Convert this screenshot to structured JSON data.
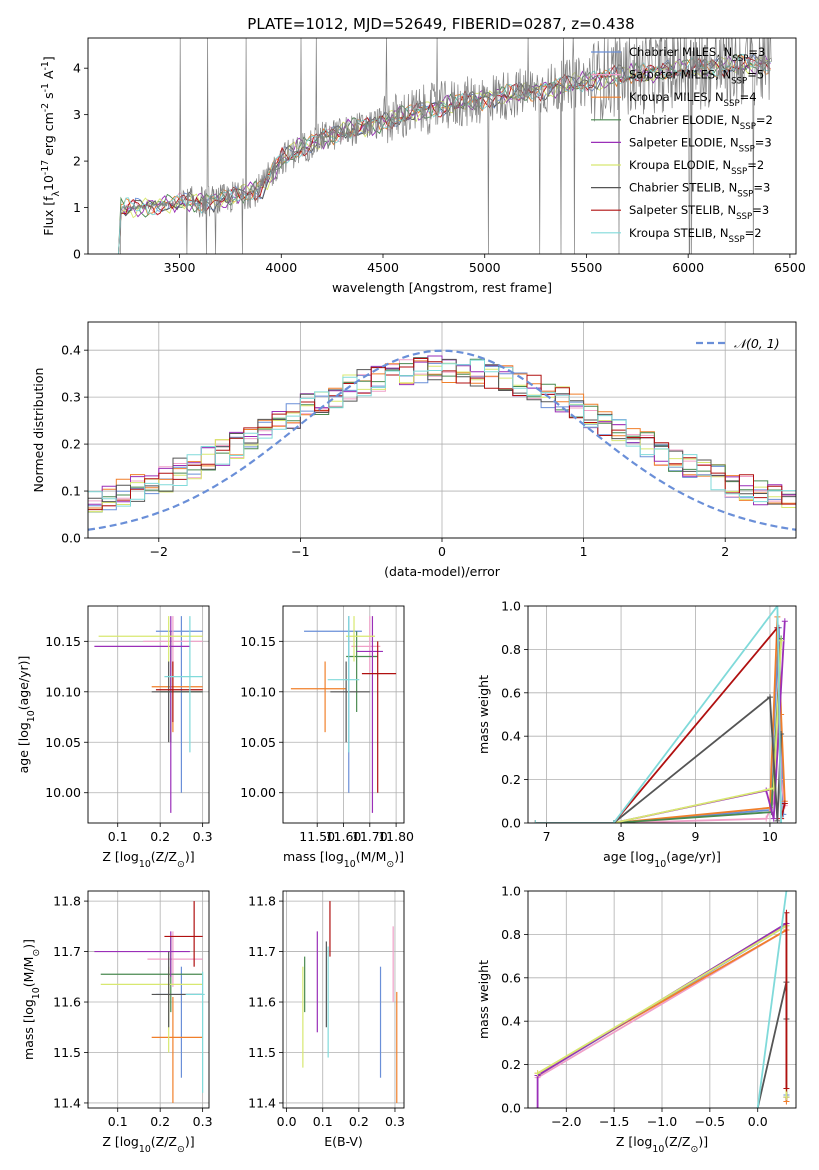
{
  "title": "PLATE=1012, MJD=52649, FIBERID=0287, z=0.438",
  "models": [
    {
      "name": "Chabrier MILES",
      "nssp": "3",
      "color": "#6a8fd8"
    },
    {
      "name": "Salpeter MILES",
      "nssp": "5",
      "color": "#f0a0c8"
    },
    {
      "name": "Kroupa MILES",
      "nssp": "4",
      "color": "#f07f2a"
    },
    {
      "name": "Chabrier ELODIE",
      "nssp": "2",
      "color": "#4a8a50"
    },
    {
      "name": "Salpeter ELODIE",
      "nssp": "3",
      "color": "#9a2fb8"
    },
    {
      "name": "Kroupa ELODIE",
      "nssp": "2",
      "color": "#d8e870"
    },
    {
      "name": "Chabrier STELIB",
      "nssp": "3",
      "color": "#555555"
    },
    {
      "name": "Salpeter STELIB",
      "nssp": "3",
      "color": "#b01010"
    },
    {
      "name": "Kroupa STELIB",
      "nssp": "2",
      "color": "#80dada"
    }
  ],
  "chart_data": [
    {
      "id": "spectrum",
      "type": "line",
      "xlabel": "wavelength [Angstrom, rest frame]",
      "ylabel": "Flux [f_λ 10^-17 erg cm^-2 s^-1 A^-1]",
      "xlim": [
        3050,
        6530
      ],
      "ylim": [
        0,
        4.65
      ],
      "xticks": [
        3500,
        4000,
        4500,
        5000,
        5500,
        6000,
        6500
      ],
      "yticks": [
        0,
        1,
        2,
        3,
        4
      ],
      "grid": false,
      "legend": "top-right",
      "data_color": "#808080",
      "continuum": {
        "x": [
          3200,
          3500,
          3700,
          3900,
          4000,
          4200,
          4500,
          4700,
          5000,
          5300,
          5600,
          5900,
          6200,
          6400
        ],
        "y": [
          0.95,
          1.1,
          1.15,
          1.4,
          2.05,
          2.5,
          2.85,
          3.1,
          3.35,
          3.55,
          3.8,
          3.95,
          4.05,
          4.1
        ]
      },
      "data_range": [
        3200,
        6410
      ]
    },
    {
      "id": "residuals",
      "type": "histogram",
      "xlabel": "(data-model)/error",
      "ylabel": "Normed distribution",
      "xlim": [
        -2.5,
        2.5
      ],
      "ylim": [
        0,
        0.46
      ],
      "xticks": [
        -2,
        -1,
        0,
        1,
        2
      ],
      "yticks": [
        0.0,
        0.1,
        0.2,
        0.3,
        0.4
      ],
      "grid": true,
      "legend": "top-right",
      "reference": {
        "name": "N(0,1)",
        "color": "#6a8fd8"
      },
      "bin_width": 0.1
    },
    {
      "id": "age-vs-Z",
      "type": "errorbar",
      "xlabel": "Z [log10(Z/Z⊙)]",
      "ylabel": "age [log10(age/yr)]",
      "xlim": [
        0.03,
        0.315
      ],
      "ylim": [
        9.97,
        10.185
      ],
      "xticks": [
        0.1,
        0.2,
        0.3
      ],
      "yticks": [
        10.0,
        10.05,
        10.1,
        10.15
      ],
      "grid": true,
      "points": [
        {
          "model": 0,
          "x": 0.25,
          "xerr": [
            0.19,
            0.3
          ],
          "y": 10.16,
          "yerr": [
            10.0,
            10.175
          ]
        },
        {
          "model": 1,
          "x": 0.23,
          "xerr": [
            0.16,
            0.3
          ],
          "y": 10.15,
          "yerr": [
            10.12,
            10.175
          ]
        },
        {
          "model": 2,
          "x": 0.23,
          "xerr": [
            0.18,
            0.3
          ],
          "y": 10.105,
          "yerr": [
            10.06,
            10.13
          ]
        },
        {
          "model": 3,
          "x": 0.225,
          "xerr": [
            0.2,
            0.3
          ],
          "y": 10.1,
          "yerr": [
            10.05,
            10.16
          ]
        },
        {
          "model": 4,
          "x": 0.225,
          "xerr": [
            0.045,
            0.27
          ],
          "y": 10.145,
          "yerr": [
            9.98,
            10.175
          ]
        },
        {
          "model": 5,
          "x": 0.22,
          "xerr": [
            0.055,
            0.3
          ],
          "y": 10.155,
          "yerr": [
            10.13,
            10.175
          ]
        },
        {
          "model": 6,
          "x": 0.22,
          "xerr": [
            0.18,
            0.3
          ],
          "y": 10.1,
          "yerr": [
            10.05,
            10.13
          ]
        },
        {
          "model": 7,
          "x": 0.23,
          "xerr": [
            0.19,
            0.3
          ],
          "y": 10.102,
          "yerr": [
            10.07,
            10.13
          ]
        },
        {
          "model": 8,
          "x": 0.27,
          "xerr": [
            0.21,
            0.3
          ],
          "y": 10.115,
          "yerr": [
            10.04,
            10.175
          ]
        }
      ]
    },
    {
      "id": "age-vs-mass",
      "type": "errorbar",
      "xlabel": "mass [log10(M/M⊙)]",
      "ylabel": "",
      "xlim": [
        11.37,
        11.83
      ],
      "ylim": [
        9.97,
        10.185
      ],
      "xticks": [
        11.5,
        11.6,
        11.7,
        11.8
      ],
      "yticks": [
        10.0,
        10.05,
        10.1,
        10.15
      ],
      "grid": true,
      "points": [
        {
          "model": 0,
          "x": 11.62,
          "xerr": [
            11.45,
            11.67
          ],
          "y": 10.16,
          "yerr": [
            10.0,
            10.175
          ]
        },
        {
          "model": 1,
          "x": 11.7,
          "xerr": [
            11.63,
            11.74
          ],
          "y": 10.145,
          "yerr": [
            10.12,
            10.175
          ]
        },
        {
          "model": 2,
          "x": 11.53,
          "xerr": [
            11.4,
            11.61
          ],
          "y": 10.103,
          "yerr": [
            10.06,
            10.13
          ]
        },
        {
          "model": 3,
          "x": 11.65,
          "xerr": [
            11.61,
            11.73
          ],
          "y": 10.135,
          "yerr": [
            10.08,
            10.16
          ]
        },
        {
          "model": 4,
          "x": 11.71,
          "xerr": [
            11.65,
            11.75
          ],
          "y": 10.14,
          "yerr": [
            9.98,
            10.175
          ]
        },
        {
          "model": 5,
          "x": 11.64,
          "xerr": [
            11.61,
            11.72
          ],
          "y": 10.155,
          "yerr": [
            10.13,
            10.175
          ]
        },
        {
          "model": 6,
          "x": 11.61,
          "xerr": [
            11.55,
            11.7
          ],
          "y": 10.1,
          "yerr": [
            10.05,
            10.13
          ]
        },
        {
          "model": 7,
          "x": 11.73,
          "xerr": [
            11.67,
            11.8
          ],
          "y": 10.118,
          "yerr": [
            10.0,
            10.15
          ]
        },
        {
          "model": 8,
          "x": 11.62,
          "xerr": [
            11.54,
            11.66
          ],
          "y": 10.112,
          "yerr": [
            10.04,
            10.175
          ]
        }
      ]
    },
    {
      "id": "weight-vs-age",
      "type": "line",
      "xlabel": "age [log10(age/yr)]",
      "ylabel": "mass weight",
      "xlim": [
        6.75,
        10.35
      ],
      "ylim": [
        0,
        1.0
      ],
      "xticks": [
        7,
        8,
        9,
        10
      ],
      "yticks": [
        0.0,
        0.2,
        0.4,
        0.6,
        0.8,
        1.0
      ],
      "grid": true,
      "series": [
        {
          "model": 0,
          "x": [
            6.85,
            7.9,
            10.0,
            10.12,
            10.18
          ],
          "y": [
            0,
            0,
            0.06,
            0.9,
            0.04
          ]
        },
        {
          "model": 1,
          "x": [
            6.85,
            7.9,
            9.95,
            10.05,
            10.12,
            10.15,
            10.2
          ],
          "y": [
            0,
            0,
            0.02,
            0.1,
            0.6,
            0.2,
            0.08
          ]
        },
        {
          "model": 2,
          "x": [
            6.85,
            7.9,
            10.0,
            10.1,
            10.15,
            10.2
          ],
          "y": [
            0,
            0,
            0.07,
            0.95,
            0.5,
            0.1
          ]
        },
        {
          "model": 3,
          "x": [
            6.85,
            7.9,
            10.02,
            10.15
          ],
          "y": [
            0,
            0,
            0.05,
            0.85
          ]
        },
        {
          "model": 4,
          "x": [
            6.85,
            7.9,
            9.95,
            10.05,
            10.2
          ],
          "y": [
            0,
            0,
            0.15,
            0.02,
            0.93
          ]
        },
        {
          "model": 5,
          "x": [
            6.85,
            7.9,
            10.05,
            10.15
          ],
          "y": [
            0,
            0,
            0.16,
            0.84
          ]
        },
        {
          "model": 6,
          "x": [
            6.85,
            7.9,
            10.0,
            10.1,
            10.15
          ],
          "y": [
            0,
            0,
            0.58,
            0.01,
            0.41
          ]
        },
        {
          "model": 7,
          "x": [
            6.85,
            7.9,
            10.1,
            10.15,
            10.2
          ],
          "y": [
            0,
            0,
            0.9,
            0.02,
            0.09
          ]
        },
        {
          "model": 8,
          "x": [
            6.85,
            7.9,
            10.1,
            10.15
          ],
          "y": [
            0,
            0,
            1.0,
            0.0
          ]
        }
      ]
    },
    {
      "id": "mass-vs-Z",
      "type": "errorbar",
      "xlabel": "Z [log10(Z/Z⊙)]",
      "ylabel": "mass [log10(M/M⊙)]",
      "xlim": [
        0.03,
        0.315
      ],
      "ylim": [
        11.39,
        11.82
      ],
      "xticks": [
        0.1,
        0.2,
        0.3
      ],
      "yticks": [
        11.4,
        11.5,
        11.6,
        11.7,
        11.8
      ],
      "grid": true,
      "points": [
        {
          "model": 0,
          "x": 0.25,
          "xerr": [
            0.19,
            0.3
          ],
          "y": 11.615,
          "yerr": [
            11.45,
            11.67
          ]
        },
        {
          "model": 1,
          "x": 0.23,
          "xerr": [
            0.17,
            0.3
          ],
          "y": 11.685,
          "yerr": [
            11.63,
            11.74
          ]
        },
        {
          "model": 2,
          "x": 0.23,
          "xerr": [
            0.18,
            0.3
          ],
          "y": 11.53,
          "yerr": [
            11.4,
            11.61
          ]
        },
        {
          "model": 3,
          "x": 0.225,
          "xerr": [
            0.06,
            0.3
          ],
          "y": 11.655,
          "yerr": [
            11.58,
            11.73
          ]
        },
        {
          "model": 4,
          "x": 0.225,
          "xerr": [
            0.045,
            0.27
          ],
          "y": 11.7,
          "yerr": [
            11.65,
            11.74
          ]
        },
        {
          "model": 5,
          "x": 0.22,
          "xerr": [
            0.06,
            0.3
          ],
          "y": 11.635,
          "yerr": [
            11.5,
            11.67
          ]
        },
        {
          "model": 6,
          "x": 0.22,
          "xerr": [
            0.18,
            0.3
          ],
          "y": 11.615,
          "yerr": [
            11.55,
            11.7
          ]
        },
        {
          "model": 7,
          "x": 0.28,
          "xerr": [
            0.21,
            0.3
          ],
          "y": 11.73,
          "yerr": [
            11.67,
            11.8
          ]
        },
        {
          "model": 8,
          "x": 0.3,
          "xerr": [
            0.26,
            0.305
          ],
          "y": 11.615,
          "yerr": [
            11.42,
            11.66
          ]
        }
      ]
    },
    {
      "id": "mass-vs-ebv",
      "type": "errorbar",
      "xlabel": "E(B-V)",
      "ylabel": "",
      "xlim": [
        -0.01,
        0.325
      ],
      "ylim": [
        11.39,
        11.82
      ],
      "xticks": [
        0.0,
        0.1,
        0.2,
        0.3
      ],
      "yticks": [
        11.4,
        11.5,
        11.6,
        11.7,
        11.8
      ],
      "grid": true,
      "points": [
        {
          "model": 0,
          "x": 0.26,
          "yerr": [
            11.45,
            11.67
          ]
        },
        {
          "model": 1,
          "x": 0.295,
          "yerr": [
            11.6,
            11.75
          ]
        },
        {
          "model": 2,
          "x": 0.305,
          "yerr": [
            11.4,
            11.62
          ]
        },
        {
          "model": 3,
          "x": 0.05,
          "yerr": [
            11.58,
            11.69
          ]
        },
        {
          "model": 4,
          "x": 0.085,
          "yerr": [
            11.54,
            11.74
          ]
        },
        {
          "model": 5,
          "x": 0.045,
          "yerr": [
            11.47,
            11.67
          ]
        },
        {
          "model": 6,
          "x": 0.11,
          "yerr": [
            11.55,
            11.72
          ]
        },
        {
          "model": 7,
          "x": 0.12,
          "yerr": [
            11.69,
            11.8
          ]
        },
        {
          "model": 8,
          "x": 0.115,
          "yerr": [
            11.49,
            11.71
          ]
        }
      ]
    },
    {
      "id": "weight-vs-Z",
      "type": "line",
      "xlabel": "Z [log10(Z/Z⊙)]",
      "ylabel": "mass weight",
      "xlim": [
        -2.4,
        0.4
      ],
      "ylim": [
        0,
        1.0
      ],
      "xticks": [
        -2.0,
        -1.5,
        -1.0,
        -0.5,
        0.0
      ],
      "yticks": [
        0.0,
        0.2,
        0.4,
        0.6,
        0.8,
        1.0
      ],
      "grid": true,
      "series": [
        {
          "model": 0,
          "x": [
            -2.3,
            0.3,
            0.3
          ],
          "y": [
            0.15,
            0.84,
            0.06
          ]
        },
        {
          "model": 1,
          "x": [
            -2.3,
            0.3,
            0.3
          ],
          "y": [
            0.14,
            0.82,
            0.03
          ]
        },
        {
          "model": 2,
          "x": [
            -2.3,
            0.3,
            0.3
          ],
          "y": [
            0.16,
            0.82,
            0.03
          ]
        },
        {
          "model": 3,
          "x": [
            -2.3,
            0.3,
            0.3
          ],
          "y": [
            0.15,
            0.85,
            0.05
          ]
        },
        {
          "model": 4,
          "x": [
            -2.3,
            -2.3,
            0.3,
            0.3
          ],
          "y": [
            0.0,
            0.15,
            0.85,
            0.05
          ]
        },
        {
          "model": 5,
          "x": [
            -2.3,
            0.3,
            0.3
          ],
          "y": [
            0.16,
            0.84,
            0.05
          ]
        },
        {
          "model": 6,
          "x": [
            0.0,
            0.3,
            0.3
          ],
          "y": [
            0.0,
            0.58,
            0.41
          ]
        },
        {
          "model": 7,
          "x": [
            0.3,
            0.3
          ],
          "y": [
            0.9,
            0.09
          ]
        },
        {
          "model": 8,
          "x": [
            0.0,
            0.3
          ],
          "y": [
            0.0,
            1.0
          ]
        }
      ]
    }
  ]
}
